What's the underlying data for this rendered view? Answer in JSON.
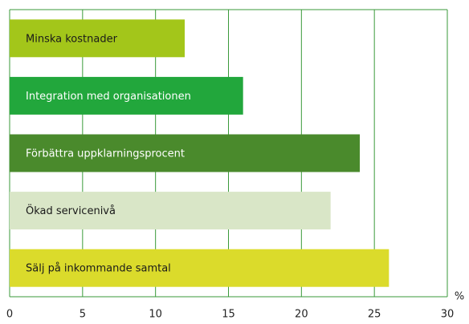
{
  "chart_data": {
    "type": "barh",
    "categories": [
      "Minska kostnader",
      "Integration med organisationen",
      "Förbättra uppklarningsprocent",
      "Ökad servicenivå",
      "Sälj på inkommande samtal"
    ],
    "values": [
      12,
      16,
      24,
      22,
      26
    ],
    "colors": [
      "#a3c61a",
      "#22a73c",
      "#4a8a2c",
      "#d9e6c7",
      "#dbdb2b"
    ],
    "label_colors": [
      "#1a1a1a",
      "#ffffff",
      "#ffffff",
      "#1a1a1a",
      "#1a1a1a"
    ],
    "xlabel": "%",
    "xlim": [
      0,
      30
    ],
    "xticks": [
      0,
      5,
      10,
      15,
      20,
      25,
      30
    ],
    "grid": true
  }
}
